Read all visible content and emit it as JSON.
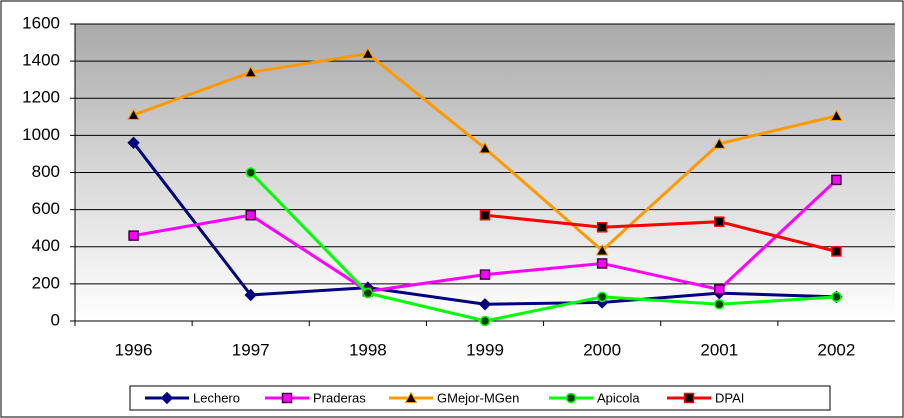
{
  "chart_data": {
    "type": "line",
    "categories": [
      "1996",
      "1997",
      "1998",
      "1999",
      "2000",
      "2001",
      "2002"
    ],
    "series": [
      {
        "name": "Lechero",
        "color": "#000080",
        "marker": "diamond",
        "values": [
          960,
          140,
          180,
          90,
          100,
          150,
          130
        ]
      },
      {
        "name": "Praderas",
        "color": "#ff00ff",
        "marker": "square",
        "values": [
          460,
          570,
          160,
          250,
          310,
          170,
          760
        ]
      },
      {
        "name": "GMejor-MGen",
        "color": "#ff9900",
        "marker": "triangle",
        "values": [
          1110,
          1340,
          1440,
          930,
          380,
          955,
          1105
        ]
      },
      {
        "name": "Apicola",
        "color": "#00ff00",
        "marker": "circle",
        "values": [
          null,
          800,
          150,
          0,
          130,
          90,
          130
        ]
      },
      {
        "name": "DPAI",
        "color": "#ff0000",
        "marker": "square",
        "values": [
          null,
          null,
          null,
          570,
          505,
          535,
          375
        ]
      }
    ],
    "ylim": [
      0,
      1600
    ],
    "yticks": [
      0,
      200,
      400,
      600,
      800,
      1000,
      1200,
      1400,
      1600
    ],
    "grid": true,
    "legend": "bottom"
  }
}
